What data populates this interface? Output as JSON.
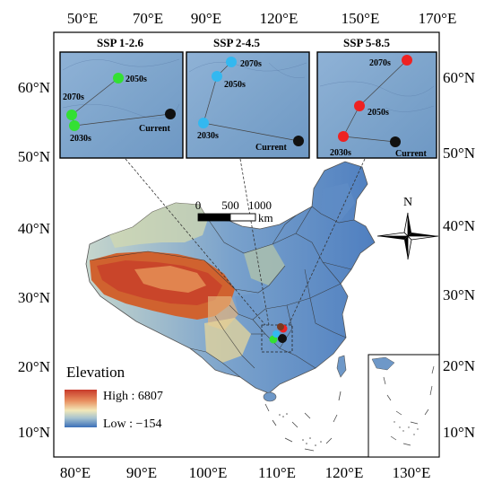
{
  "top_ticks": [
    "50°E",
    "70°E",
    "90°E",
    "120°E",
    "150°E",
    "170°E"
  ],
  "bottom_ticks": [
    "80°E",
    "90°E",
    "100°E",
    "110°E",
    "120°E",
    "130°E"
  ],
  "left_ticks": [
    "60°N",
    "50°N",
    "40°N",
    "30°N",
    "20°N",
    "10°N"
  ],
  "right_ticks": [
    "60°N",
    "50°N",
    "40°N",
    "30°N",
    "20°N",
    "10°N"
  ],
  "panels": [
    {
      "title": "SSP 1-2.6",
      "color": "#33e033",
      "labels": {
        "l2050": "2050s",
        "l2070": "2070s",
        "l2030": "2030s",
        "current": "Current"
      }
    },
    {
      "title": "SSP 2-4.5",
      "color": "#33b8f0",
      "labels": {
        "l2070": "2070s",
        "l2050": "2050s",
        "l2030": "2030s",
        "current": "Current"
      }
    },
    {
      "title": "SSP 5-8.5",
      "color": "#ee2222",
      "labels": {
        "l2070": "2070s",
        "l2050": "2050s",
        "l2030": "2030s",
        "current": "Current"
      }
    }
  ],
  "scalebar": {
    "t0": "0",
    "t1": "500",
    "t2": "1000",
    "unit": "km"
  },
  "north_label": "N",
  "legend": {
    "title": "Elevation",
    "high": "High : 6807",
    "low": "Low : −154"
  }
}
